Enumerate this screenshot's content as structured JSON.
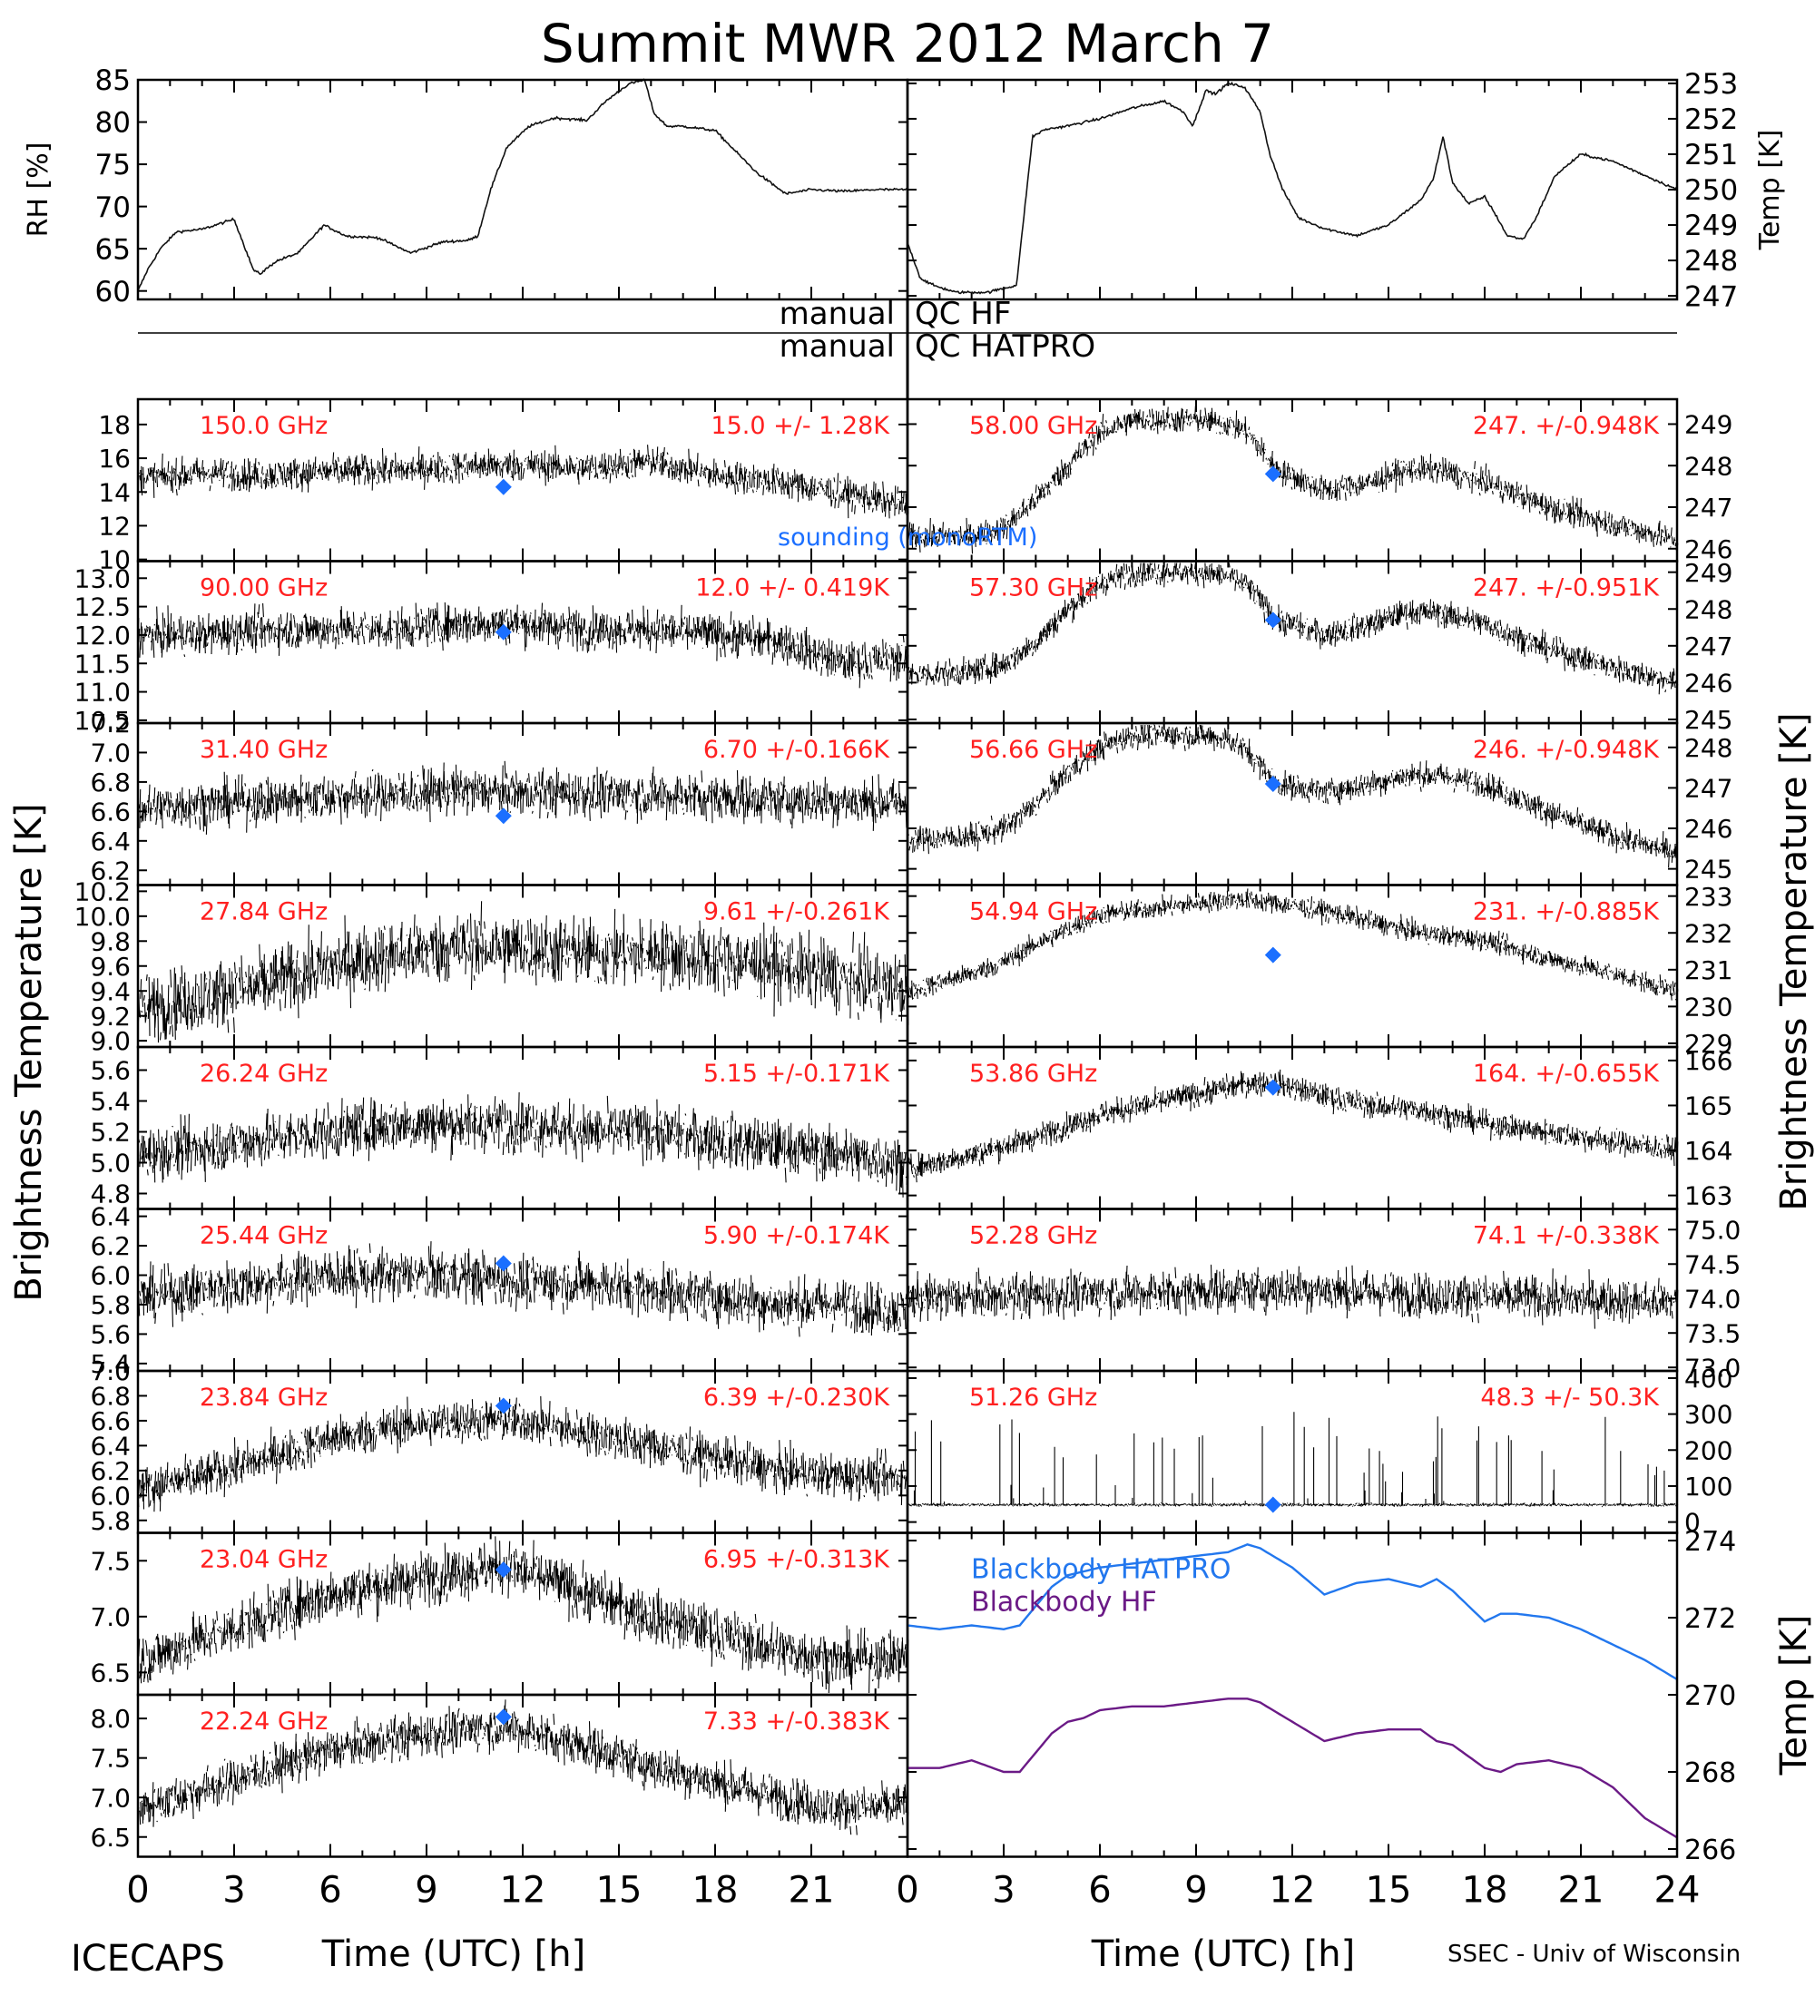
{
  "title": "Summit MWR 2012 March  7",
  "footer": {
    "left": "ICECAPS",
    "right": "SSEC - Univ of Wisconsin",
    "xlabel": "Time (UTC) [h]"
  },
  "colors": {
    "data": "#000000",
    "label": "#ff2020",
    "sounding": "#1b6fff",
    "bb_hatpro": "#2277ee",
    "bb_hf": "#6b1a86"
  },
  "left_ylabel": "Brightness Temperature [K]",
  "right_ylabel": "Brightness Temperature [K]",
  "qc": {
    "hf_left": "manual",
    "hf_right": "QC HF",
    "hatpro_left": "manual",
    "hatpro_right": "QC HATPRO"
  },
  "sounding_label": "sounding (monoRTM)",
  "chart_data": [
    {
      "id": "rh",
      "type": "line",
      "ylabel": "RH [%]",
      "ylim": [
        59,
        85
      ],
      "yticks": [
        60,
        65,
        70,
        75,
        80,
        85
      ],
      "x": [
        0,
        0.3,
        0.7,
        1.2,
        2,
        3,
        3.6,
        3.8,
        4.3,
        5,
        5.8,
        6.5,
        7.5,
        8.5,
        9.5,
        10.3,
        10.6,
        11,
        11.5,
        12.2,
        13,
        14,
        14.6,
        15.3,
        15.8,
        16.1,
        16.5,
        17,
        18,
        19.3,
        20.2,
        21,
        22,
        23,
        24
      ],
      "y": [
        60,
        62.5,
        65,
        67,
        67.3,
        68.5,
        62.5,
        62,
        63.5,
        64.5,
        67.8,
        66.5,
        66.3,
        64.5,
        65.8,
        66,
        66.5,
        72,
        77,
        79.5,
        80.5,
        80.2,
        82.5,
        84.5,
        85,
        81,
        79.5,
        79.5,
        79,
        74,
        71.5,
        72,
        71.8,
        72,
        72
      ]
    },
    {
      "id": "temp",
      "type": "line",
      "ylabel": "Temp [K]",
      "ylim": [
        246.9,
        253.1
      ],
      "yticks": [
        247,
        248,
        249,
        250,
        251,
        252,
        253
      ],
      "x": [
        0,
        0.4,
        0.8,
        1.5,
        2.5,
        3.4,
        3.6,
        3.9,
        4.3,
        5,
        6,
        7,
        8,
        8.6,
        8.9,
        9.3,
        9.6,
        10,
        10.5,
        11,
        11.3,
        11.7,
        12.2,
        13,
        14,
        15,
        16,
        16.4,
        16.7,
        17,
        17.5,
        18,
        18.4,
        18.7,
        19.2,
        19.6,
        20.2,
        21,
        22,
        23,
        24
      ],
      "y": [
        248.5,
        247.5,
        247.3,
        247.1,
        247.1,
        247.3,
        249,
        251.5,
        251.7,
        251.8,
        252,
        252.3,
        252.5,
        252.2,
        251.8,
        252.8,
        252.7,
        253,
        252.9,
        252.2,
        251,
        250,
        249.2,
        248.9,
        248.7,
        249,
        249.7,
        250.3,
        251.5,
        250.2,
        249.6,
        249.8,
        249.2,
        248.7,
        248.6,
        249.2,
        250.4,
        251,
        250.8,
        250.4,
        250
      ]
    },
    {
      "id": "c150",
      "type": "scatter",
      "label": "150.0 GHz",
      "stat": "15.0 +/-  1.28K",
      "ylim": [
        9.9,
        19.5
      ],
      "yticks": [
        10,
        12,
        14,
        16,
        18
      ],
      "ytick_labels": [
        "10",
        "12",
        "14",
        "16",
        "18"
      ],
      "x": [
        0,
        2,
        4,
        6,
        8,
        10,
        12,
        14,
        16,
        18,
        20,
        22,
        24
      ],
      "y": [
        14.8,
        15.1,
        15,
        15.2,
        15.3,
        15.5,
        15.6,
        15.4,
        15.8,
        15,
        14.6,
        13.9,
        13.2
      ],
      "noise": 1.2,
      "sounding": [
        11.4,
        14.3
      ]
    },
    {
      "id": "c58",
      "type": "scatter",
      "label": "58.00 GHz",
      "stat": "247. +/-0.948K",
      "ylim": [
        245.7,
        249.6
      ],
      "yticks": [
        246,
        247,
        248,
        249
      ],
      "ytick_labels": [
        "246",
        "247",
        "248",
        "249"
      ],
      "x": [
        0,
        2,
        3,
        4,
        5,
        6,
        7,
        8,
        9,
        10,
        10.6,
        11.5,
        13,
        14.5,
        15.5,
        16.5,
        18,
        20,
        22,
        24
      ],
      "y": [
        246.3,
        246.3,
        246.5,
        247.2,
        248,
        248.8,
        249.1,
        249.1,
        249.1,
        249,
        248.8,
        247.9,
        247.4,
        247.6,
        247.9,
        247.9,
        247.6,
        247,
        246.6,
        246.2
      ],
      "noise": 0.4,
      "sounding": [
        11.4,
        247.8
      ]
    },
    {
      "id": "c90",
      "type": "scatter",
      "label": "90.00 GHz",
      "stat": "12.0 +/- 0.419K",
      "ylim": [
        10.45,
        13.3
      ],
      "yticks": [
        10.5,
        11,
        11.5,
        12,
        12.5,
        13
      ],
      "ytick_labels": [
        "10.5",
        "11.0",
        "11.5",
        "12.0",
        "12.5",
        "13.0"
      ],
      "x": [
        0,
        2,
        4,
        6,
        8,
        10,
        12,
        14,
        16,
        18,
        20,
        22,
        24
      ],
      "y": [
        12,
        12,
        12.1,
        12.1,
        12.1,
        12.2,
        12.2,
        12.1,
        12.1,
        12,
        11.9,
        11.5,
        11.6
      ],
      "noise": 0.45,
      "sounding": [
        11.4,
        12.05
      ]
    },
    {
      "id": "c573",
      "type": "scatter",
      "label": "57.30 GHz",
      "stat": "247. +/-0.951K",
      "ylim": [
        244.9,
        249.3
      ],
      "yticks": [
        245,
        246,
        247,
        248,
        249
      ],
      "ytick_labels": [
        "245",
        "246",
        "247",
        "248",
        "249"
      ],
      "x": [
        0,
        2,
        3,
        4,
        5,
        6,
        7,
        8,
        9,
        10,
        10.6,
        11.5,
        13,
        14.5,
        15.5,
        16.5,
        18,
        20,
        22,
        24
      ],
      "y": [
        246.2,
        246.3,
        246.5,
        247.1,
        248,
        248.7,
        249,
        249,
        249,
        248.9,
        248.6,
        247.7,
        247.3,
        247.6,
        247.9,
        247.9,
        247.6,
        246.9,
        246.4,
        246
      ],
      "noise": 0.45,
      "sounding": [
        11.4,
        247.7
      ]
    },
    {
      "id": "c314",
      "type": "scatter",
      "label": "31.40 GHz",
      "stat": "6.70 +/-0.166K",
      "ylim": [
        6.1,
        7.2
      ],
      "yticks": [
        6.2,
        6.4,
        6.6,
        6.8,
        7,
        7.2
      ],
      "ytick_labels": [
        "6.2",
        "6.4",
        "6.6",
        "6.8",
        "7.0",
        "7.2"
      ],
      "x": [
        0,
        2,
        4,
        6,
        8,
        10,
        12,
        14,
        16,
        18,
        20,
        22,
        24
      ],
      "y": [
        6.62,
        6.65,
        6.67,
        6.7,
        6.72,
        6.74,
        6.73,
        6.72,
        6.71,
        6.7,
        6.68,
        6.67,
        6.66
      ],
      "noise": 0.2,
      "sounding": [
        11.4,
        6.57
      ]
    },
    {
      "id": "c5666",
      "type": "scatter",
      "label": "56.66 GHz",
      "stat": "246. +/-0.948K",
      "ylim": [
        244.6,
        248.6
      ],
      "yticks": [
        245,
        246,
        247,
        248
      ],
      "ytick_labels": [
        "245",
        "246",
        "247",
        "248"
      ],
      "x": [
        0,
        2,
        3,
        4,
        5,
        6,
        7,
        8,
        9,
        10,
        10.6,
        11.5,
        13,
        14.5,
        15.5,
        16.5,
        18,
        20,
        22,
        24
      ],
      "y": [
        245.7,
        245.8,
        246,
        246.6,
        247.4,
        248,
        248.3,
        248.3,
        248.3,
        248.2,
        247.9,
        247.1,
        246.9,
        247.1,
        247.3,
        247.3,
        247.1,
        246.4,
        245.8,
        245.4
      ],
      "noise": 0.4,
      "sounding": [
        11.4,
        247.1
      ]
    },
    {
      "id": "c2784",
      "type": "scatter",
      "label": "27.84 GHz",
      "stat": "9.61 +/-0.261K",
      "ylim": [
        8.95,
        10.25
      ],
      "yticks": [
        9,
        9.2,
        9.4,
        9.6,
        9.8,
        10,
        10.2
      ],
      "ytick_labels": [
        "9.0",
        "9.2",
        "9.4",
        "9.6",
        "9.8",
        "10.0",
        "10.2"
      ],
      "x": [
        0,
        2,
        4,
        6,
        8,
        10,
        12,
        14,
        16,
        18,
        20,
        22,
        24
      ],
      "y": [
        9.25,
        9.35,
        9.45,
        9.6,
        9.7,
        9.75,
        9.75,
        9.7,
        9.7,
        9.65,
        9.6,
        9.5,
        9.4
      ],
      "noise": 0.35,
      "sounding": null
    },
    {
      "id": "c5494",
      "type": "scatter",
      "label": "54.94 GHz",
      "stat": "231. +/-0.885K",
      "ylim": [
        228.9,
        233.3
      ],
      "yticks": [
        229,
        230,
        231,
        232,
        233
      ],
      "ytick_labels": [
        "229",
        "230",
        "231",
        "232",
        "233"
      ],
      "x": [
        0,
        2,
        3,
        4,
        5,
        6,
        7,
        8,
        9,
        10,
        10.6,
        11.5,
        13,
        14.5,
        16,
        18,
        20,
        22,
        24
      ],
      "y": [
        230.4,
        230.9,
        231.2,
        231.7,
        232.1,
        232.5,
        232.6,
        232.7,
        232.8,
        232.9,
        232.9,
        232.8,
        232.6,
        232.3,
        232,
        231.8,
        231.3,
        230.9,
        230.4
      ],
      "noise": 0.35,
      "sounding": [
        11.4,
        231.4
      ]
    },
    {
      "id": "c2624",
      "type": "scatter",
      "label": "26.24 GHz",
      "stat": "5.15 +/-0.171K",
      "ylim": [
        4.7,
        5.75
      ],
      "yticks": [
        4.8,
        5,
        5.2,
        5.4,
        5.6
      ],
      "ytick_labels": [
        "4.8",
        "5.0",
        "5.2",
        "5.4",
        "5.6"
      ],
      "x": [
        0,
        2,
        4,
        6,
        8,
        10,
        12,
        14,
        16,
        18,
        20,
        22,
        24
      ],
      "y": [
        5.05,
        5.1,
        5.15,
        5.2,
        5.25,
        5.25,
        5.25,
        5.2,
        5.2,
        5.15,
        5.1,
        5.05,
        5
      ],
      "noise": 0.22,
      "sounding": null
    },
    {
      "id": "c5386",
      "type": "scatter",
      "label": "53.86 GHz",
      "stat": "164. +/-0.655K",
      "ylim": [
        162.7,
        166.3
      ],
      "yticks": [
        163,
        164,
        165,
        166
      ],
      "ytick_labels": [
        "163",
        "164",
        "165",
        "166"
      ],
      "x": [
        0,
        2,
        4,
        6,
        8,
        10,
        10.6,
        11.5,
        13,
        14.5,
        16,
        18,
        20,
        22,
        24
      ],
      "y": [
        163.6,
        163.9,
        164.3,
        164.8,
        165.1,
        165.4,
        165.5,
        165.5,
        165.2,
        165,
        164.9,
        164.6,
        164.4,
        164.2,
        164
      ],
      "noise": 0.35,
      "sounding": [
        11.4,
        165.4
      ]
    },
    {
      "id": "c2544",
      "type": "scatter",
      "label": "25.44 GHz",
      "stat": "5.90 +/-0.174K",
      "ylim": [
        5.35,
        6.45
      ],
      "yticks": [
        5.4,
        5.6,
        5.8,
        6,
        6.2,
        6.4
      ],
      "ytick_labels": [
        "5.4",
        "5.6",
        "5.8",
        "6.0",
        "6.2",
        "6.4"
      ],
      "x": [
        0,
        2,
        4,
        6,
        8,
        10,
        12,
        14,
        16,
        18,
        20,
        22,
        24
      ],
      "y": [
        5.85,
        5.9,
        5.95,
        6,
        6,
        6,
        5.95,
        5.95,
        5.9,
        5.85,
        5.8,
        5.8,
        5.75
      ],
      "noise": 0.22,
      "sounding": [
        11.4,
        6.08
      ]
    },
    {
      "id": "c5228",
      "type": "scatter",
      "label": "52.28 GHz",
      "stat": "74.1 +/-0.338K",
      "ylim": [
        72.95,
        75.3
      ],
      "yticks": [
        73,
        73.5,
        74,
        74.5,
        75
      ],
      "ytick_labels": [
        "73.0",
        "73.5",
        "74.0",
        "74.5",
        "75.0"
      ],
      "x": [
        0,
        4,
        8,
        12,
        16,
        20,
        24
      ],
      "y": [
        74,
        74.05,
        74.1,
        74.15,
        74.05,
        74,
        73.95
      ],
      "noise": 0.4,
      "sounding": null
    },
    {
      "id": "c2384",
      "type": "scatter",
      "label": "23.84 GHz",
      "stat": "6.39 +/-0.230K",
      "ylim": [
        5.7,
        7
      ],
      "yticks": [
        5.8,
        6,
        6.2,
        6.4,
        6.6,
        6.8,
        7
      ],
      "ytick_labels": [
        "5.8",
        "6.0",
        "6.2",
        "6.4",
        "6.6",
        "6.8",
        "7.0"
      ],
      "x": [
        0,
        2,
        4,
        6,
        8,
        10,
        12,
        14,
        16,
        18,
        20,
        22,
        24
      ],
      "y": [
        6.05,
        6.15,
        6.3,
        6.45,
        6.55,
        6.6,
        6.6,
        6.5,
        6.4,
        6.3,
        6.2,
        6.15,
        6.15
      ],
      "noise": 0.22,
      "sounding": [
        11.4,
        6.72
      ]
    },
    {
      "id": "c5126",
      "type": "scatter",
      "label": "51.26 GHz",
      "stat": "48.3 +/- 50.3K",
      "ylim": [
        -30,
        420
      ],
      "yticks": [
        0,
        100,
        200,
        300,
        400
      ],
      "ytick_labels": [
        "0",
        "100",
        "200",
        "300",
        "400"
      ],
      "x": [
        0,
        24
      ],
      "y": [
        48,
        48
      ],
      "noise": 6,
      "sounding": [
        11.4,
        48
      ]
    },
    {
      "id": "c2304",
      "type": "scatter",
      "label": "23.04 GHz",
      "stat": "6.95 +/-0.313K",
      "ylim": [
        6.3,
        7.75
      ],
      "yticks": [
        6.5,
        7,
        7.5
      ],
      "ytick_labels": [
        "6.5",
        "7.0",
        "7.5"
      ],
      "x": [
        0,
        2,
        4,
        6,
        8,
        10,
        11.4,
        12,
        14,
        16,
        18,
        20,
        22,
        24
      ],
      "y": [
        6.6,
        6.8,
        7,
        7.2,
        7.3,
        7.4,
        7.45,
        7.4,
        7.2,
        7,
        6.85,
        6.7,
        6.6,
        6.65
      ],
      "noise": 0.3,
      "sounding": [
        11.4,
        7.42
      ]
    },
    {
      "id": "c2224",
      "type": "scatter",
      "label": "22.24 GHz",
      "stat": "7.33 +/-0.383K",
      "ylim": [
        6.25,
        8.3
      ],
      "yticks": [
        6.5,
        7,
        7.5,
        8
      ],
      "ytick_labels": [
        "6.5",
        "7.0",
        "7.5",
        "8.0"
      ],
      "x": [
        0,
        2,
        4,
        6,
        8,
        10,
        11.4,
        12,
        14,
        16,
        18,
        20,
        22,
        24
      ],
      "y": [
        6.85,
        7.1,
        7.35,
        7.6,
        7.75,
        7.85,
        7.9,
        7.85,
        7.65,
        7.4,
        7.2,
        7,
        6.85,
        6.9
      ],
      "noise": 0.35,
      "sounding": [
        11.4,
        8.02
      ]
    },
    {
      "id": "blackbody",
      "type": "line",
      "ylabel": "Temp [K]",
      "ylim": [
        265.8,
        274.2
      ],
      "yticks": [
        266,
        268,
        270,
        272,
        274
      ],
      "ytick_labels": [
        "266",
        "268",
        "270",
        "272",
        "274"
      ],
      "series": [
        {
          "name": "Blackbody HATPRO",
          "x": [
            0,
            1,
            2,
            3,
            3.5,
            4,
            4.5,
            5,
            5.5,
            6,
            7,
            8,
            9,
            10,
            10.6,
            11,
            12,
            13,
            14,
            15,
            16,
            16.5,
            17,
            18,
            18.5,
            19,
            20,
            21,
            22,
            23,
            24
          ],
          "y": [
            271.8,
            271.7,
            271.8,
            271.7,
            271.8,
            272.3,
            272.8,
            273.1,
            273.2,
            273.3,
            273.4,
            273.5,
            273.6,
            273.7,
            273.9,
            273.8,
            273.3,
            272.6,
            272.9,
            273,
            272.8,
            273,
            272.7,
            271.9,
            272.1,
            272.1,
            272,
            271.7,
            271.3,
            270.9,
            270.4
          ]
        },
        {
          "name": "Blackbody HF",
          "x": [
            0,
            1,
            2,
            3,
            3.5,
            4,
            4.5,
            5,
            5.5,
            6,
            7,
            8,
            9,
            10,
            10.6,
            11,
            12,
            13,
            14,
            15,
            16,
            16.5,
            17,
            18,
            18.5,
            19,
            20,
            21,
            22,
            23,
            24
          ],
          "y": [
            268.1,
            268.1,
            268.3,
            268.0,
            268.0,
            268.5,
            269.0,
            269.3,
            269.4,
            269.6,
            269.7,
            269.7,
            269.8,
            269.9,
            269.9,
            269.8,
            269.3,
            268.8,
            269.0,
            269.1,
            269.1,
            268.8,
            268.7,
            268.1,
            268.0,
            268.2,
            268.3,
            268.1,
            267.6,
            266.8,
            266.3
          ]
        }
      ]
    }
  ],
  "xaxis": {
    "ticks": [
      0,
      3,
      6,
      9,
      12,
      15,
      18,
      21,
      24
    ],
    "left_labels": [
      "0",
      "3",
      "6",
      "9",
      "12",
      "15",
      "18",
      "21"
    ],
    "right_labels": [
      "0",
      "3",
      "6",
      "9",
      "12",
      "15",
      "18",
      "21",
      "24"
    ]
  }
}
